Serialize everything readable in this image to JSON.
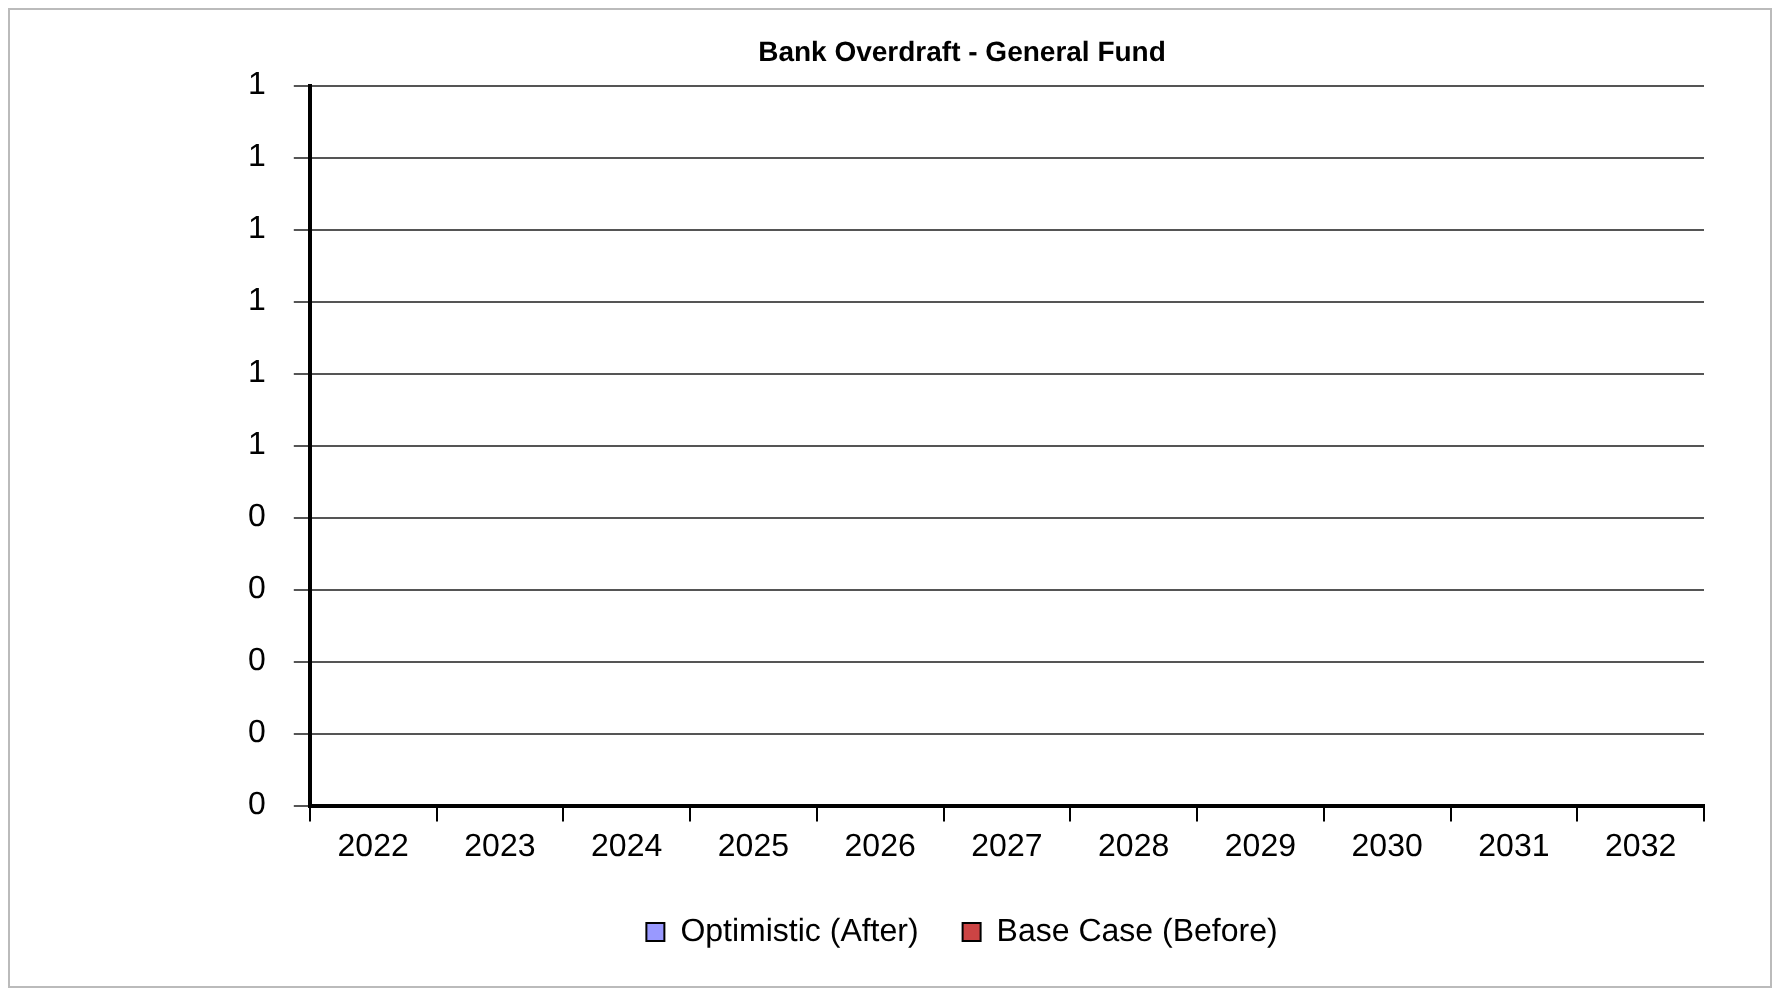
{
  "chart_data": {
    "type": "bar",
    "title": "Bank Overdraft - General Fund",
    "categories": [
      "2022",
      "2023",
      "2024",
      "2025",
      "2026",
      "2027",
      "2028",
      "2029",
      "2030",
      "2031",
      "2032"
    ],
    "series": [
      {
        "name": "Optimistic (After)",
        "color": "#9999ff",
        "values": [
          0,
          0,
          0,
          0,
          0,
          0,
          0,
          0,
          0,
          0,
          0
        ]
      },
      {
        "name": "Base Case (Before)",
        "color": "#cc4444",
        "values": [
          0,
          0,
          0,
          0,
          0,
          0,
          0,
          0,
          0,
          0,
          0
        ]
      }
    ],
    "ylim": [
      0,
      1
    ],
    "yticks": [
      {
        "value": 0,
        "label": "0"
      },
      {
        "value": 0.1,
        "label": "0"
      },
      {
        "value": 0.2,
        "label": "0"
      },
      {
        "value": 0.3,
        "label": "0"
      },
      {
        "value": 0.4,
        "label": "0"
      },
      {
        "value": 0.5,
        "label": "1"
      },
      {
        "value": 0.6,
        "label": "1"
      },
      {
        "value": 0.7,
        "label": "1"
      },
      {
        "value": 0.8,
        "label": "1"
      },
      {
        "value": 0.9,
        "label": "1"
      },
      {
        "value": 1,
        "label": "1"
      }
    ],
    "grid": "y",
    "legend": "bottom"
  }
}
